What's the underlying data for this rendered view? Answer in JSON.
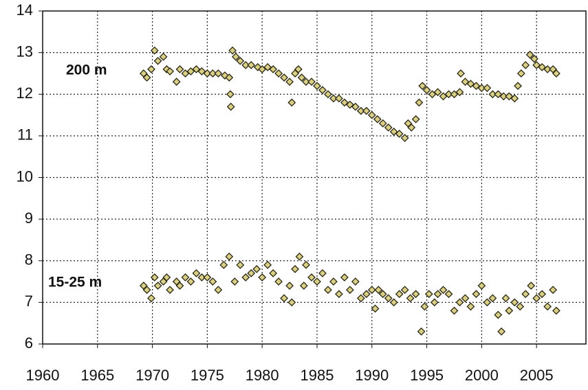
{
  "chart_data": {
    "type": "scatter",
    "xlim": [
      1960,
      2009.5
    ],
    "ylim": [
      6,
      14
    ],
    "xticks": [
      1960,
      1965,
      1970,
      1975,
      1980,
      1985,
      1990,
      1995,
      2000,
      2005
    ],
    "yticks": [
      6,
      7,
      8,
      9,
      10,
      11,
      12,
      13,
      14
    ],
    "grid": true,
    "series": [
      {
        "name": "200 m",
        "color": "#d9cf86",
        "x": [
          1969.2,
          1969.5,
          1969.9,
          1970.2,
          1970.5,
          1971,
          1971.3,
          1971.6,
          1972.2,
          1972.5,
          1973,
          1973.5,
          1974,
          1974.5,
          1975,
          1975.5,
          1976,
          1976.6,
          1977,
          1977.1,
          1977.15,
          1977.3,
          1977.6,
          1978,
          1978.5,
          1979,
          1979.6,
          1980,
          1980.5,
          1981,
          1981.5,
          1982,
          1982.5,
          1982.7,
          1983,
          1983.3,
          1983.6,
          1984,
          1984.5,
          1985,
          1985.5,
          1986,
          1986.5,
          1987,
          1987.5,
          1988,
          1988.5,
          1989,
          1989.5,
          1990,
          1990.5,
          1991,
          1991.5,
          1992,
          1992.5,
          1993,
          1993.3,
          1993.6,
          1994,
          1994.3,
          1994.6,
          1995,
          1995.5,
          1996,
          1996.5,
          1997,
          1997.5,
          1998,
          1998.1,
          1998.5,
          1999,
          1999.5,
          2000,
          2000.5,
          2001,
          2001.5,
          2002,
          2002.5,
          2003,
          2003.3,
          2003.6,
          2004,
          2004.4,
          2004.8,
          2005,
          2005.5,
          2006,
          2006.5,
          2006.8
        ],
        "values": [
          12.5,
          12.4,
          12.6,
          13.05,
          12.8,
          12.9,
          12.6,
          12.55,
          12.3,
          12.6,
          12.5,
          12.55,
          12.6,
          12.55,
          12.5,
          12.5,
          12.5,
          12.45,
          12.4,
          12.0,
          11.7,
          13.05,
          12.9,
          12.8,
          12.7,
          12.7,
          12.65,
          12.6,
          12.65,
          12.6,
          12.5,
          12.4,
          12.3,
          11.8,
          12.5,
          12.6,
          12.4,
          12.3,
          12.3,
          12.2,
          12.1,
          12.0,
          11.9,
          11.9,
          11.8,
          11.75,
          11.7,
          11.6,
          11.6,
          11.5,
          11.4,
          11.3,
          11.2,
          11.1,
          11.05,
          10.95,
          11.3,
          11.2,
          11.4,
          11.8,
          12.2,
          12.1,
          12.0,
          12.05,
          11.95,
          12.0,
          12.0,
          12.05,
          12.5,
          12.3,
          12.25,
          12.2,
          12.15,
          12.15,
          12.0,
          12.0,
          11.95,
          11.95,
          11.9,
          12.2,
          12.5,
          12.7,
          12.95,
          12.85,
          12.7,
          12.65,
          12.6,
          12.6,
          12.5
        ]
      },
      {
        "name": "15-25 m",
        "color": "#d9cf86",
        "x": [
          1969.2,
          1969.5,
          1969.9,
          1970.2,
          1970.5,
          1971,
          1971.3,
          1971.6,
          1972.2,
          1972.5,
          1973,
          1973.5,
          1974,
          1974.5,
          1975,
          1975.5,
          1976,
          1976.5,
          1977,
          1977.5,
          1978,
          1978.5,
          1979,
          1979.5,
          1980,
          1980.5,
          1981,
          1981.5,
          1982,
          1982.5,
          1982.7,
          1983,
          1983.4,
          1983.8,
          1984,
          1984.5,
          1985,
          1985.5,
          1986,
          1986.5,
          1987,
          1987.5,
          1988,
          1988.5,
          1989,
          1989.5,
          1990,
          1990.3,
          1990.6,
          1991,
          1991.5,
          1992,
          1992.5,
          1993,
          1993.5,
          1994,
          1994.5,
          1994.8,
          1995.2,
          1995.7,
          1996,
          1996.5,
          1997,
          1997.5,
          1998,
          1998.5,
          1999,
          1999.5,
          2000,
          2000.5,
          2001,
          2001.5,
          2001.8,
          2002.2,
          2002.5,
          2003,
          2003.5,
          2004,
          2004.5,
          2005,
          2005.5,
          2006,
          2006.5,
          2006.8
        ],
        "values": [
          7.4,
          7.3,
          7.1,
          7.6,
          7.4,
          7.5,
          7.6,
          7.3,
          7.5,
          7.4,
          7.6,
          7.5,
          7.7,
          7.6,
          7.6,
          7.5,
          7.3,
          7.9,
          8.1,
          7.5,
          7.9,
          7.6,
          7.7,
          7.8,
          7.6,
          7.9,
          7.7,
          7.5,
          7.1,
          7.4,
          7.0,
          7.8,
          8.1,
          7.4,
          7.9,
          7.6,
          7.5,
          7.7,
          7.3,
          7.5,
          7.2,
          7.6,
          7.3,
          7.5,
          7.1,
          7.2,
          7.3,
          6.85,
          7.3,
          7.2,
          7.1,
          7.0,
          7.2,
          7.3,
          7.1,
          7.2,
          6.3,
          6.9,
          7.2,
          7.0,
          7.2,
          7.3,
          7.2,
          6.8,
          7.0,
          7.1,
          6.9,
          7.2,
          7.4,
          7.0,
          7.1,
          6.7,
          6.3,
          7.1,
          6.8,
          7.0,
          6.9,
          7.2,
          7.4,
          7.1,
          7.2,
          6.9,
          7.3,
          6.8
        ]
      }
    ]
  }
}
